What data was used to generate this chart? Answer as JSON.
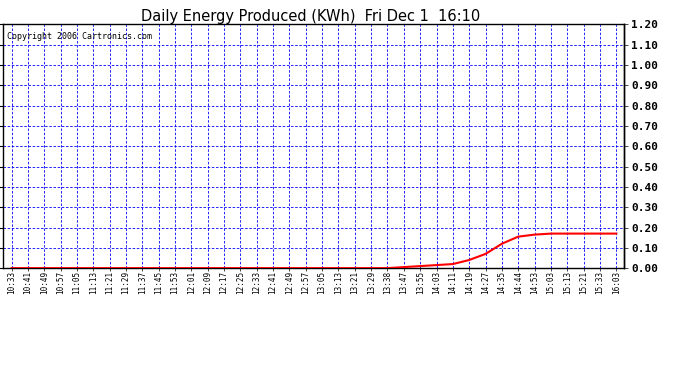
{
  "title": "Daily Energy Produced (KWh)  Fri Dec 1  16:10",
  "copyright_text": "Copyright 2006 Cartronics.com",
  "ylim": [
    0.0,
    1.2
  ],
  "yticks": [
    0.0,
    0.1,
    0.2,
    0.3,
    0.4,
    0.5,
    0.6,
    0.7,
    0.8,
    0.9,
    1.0,
    1.1,
    1.2
  ],
  "bg_color": "#ffffff",
  "plot_bg_color": "#ffffff",
  "grid_color": "#0000ff",
  "line_color": "#ff0000",
  "title_color": "#000000",
  "x_labels": [
    "10:33",
    "10:41",
    "10:49",
    "10:57",
    "11:05",
    "11:13",
    "11:21",
    "11:29",
    "11:37",
    "11:45",
    "11:53",
    "12:01",
    "12:09",
    "12:17",
    "12:25",
    "12:33",
    "12:41",
    "12:49",
    "12:57",
    "13:05",
    "13:13",
    "13:21",
    "13:29",
    "13:38",
    "13:47",
    "13:55",
    "14:03",
    "14:11",
    "14:19",
    "14:27",
    "14:35",
    "14:44",
    "14:53",
    "15:03",
    "15:13",
    "15:21",
    "15:33",
    "16:03"
  ],
  "data_y": [
    0.0,
    0.0,
    0.0,
    0.0,
    0.0,
    0.0,
    0.0,
    0.0,
    0.0,
    0.0,
    0.0,
    0.0,
    0.0,
    0.0,
    0.0,
    0.0,
    0.0,
    0.0,
    0.0,
    0.0,
    0.0,
    0.0,
    0.0,
    0.0,
    0.005,
    0.01,
    0.015,
    0.02,
    0.04,
    0.07,
    0.12,
    0.155,
    0.165,
    0.17,
    0.17,
    0.17,
    0.17,
    0.17
  ]
}
